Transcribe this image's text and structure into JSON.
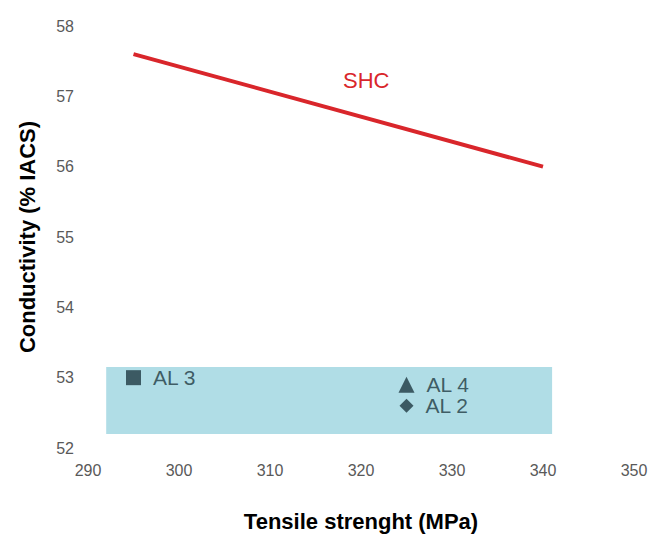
{
  "chart_data": {
    "type": "scatter",
    "xlabel": "Tensile strenght (MPa)",
    "ylabel": "Conductivity (% IACS)",
    "xlim": [
      290,
      350
    ],
    "xticks": [
      290,
      300,
      310,
      320,
      330,
      340,
      350
    ],
    "ylim": [
      52,
      58
    ],
    "yticks": [
      52,
      53,
      54,
      55,
      56,
      57,
      58
    ],
    "grid": false,
    "series": [
      {
        "name": "SHC",
        "type": "line",
        "color": "#d9262b",
        "x": [
          295,
          340
        ],
        "values": [
          57.6,
          56.0
        ]
      },
      {
        "name": "AL 3",
        "type": "scatter",
        "marker": "square",
        "color": "#1f3a42",
        "x": [
          295
        ],
        "values": [
          53.0
        ]
      },
      {
        "name": "AL 4",
        "type": "scatter",
        "marker": "triangle",
        "color": "#1f3a42",
        "x": [
          325
        ],
        "values": [
          52.9
        ]
      },
      {
        "name": "AL 2",
        "type": "scatter",
        "marker": "diamond",
        "color": "#1f3a42",
        "x": [
          325
        ],
        "values": [
          52.6
        ]
      }
    ],
    "shaded_region": {
      "x": [
        292,
        341
      ],
      "y": [
        52.2,
        53.15
      ],
      "color": "#b0dde6"
    }
  }
}
